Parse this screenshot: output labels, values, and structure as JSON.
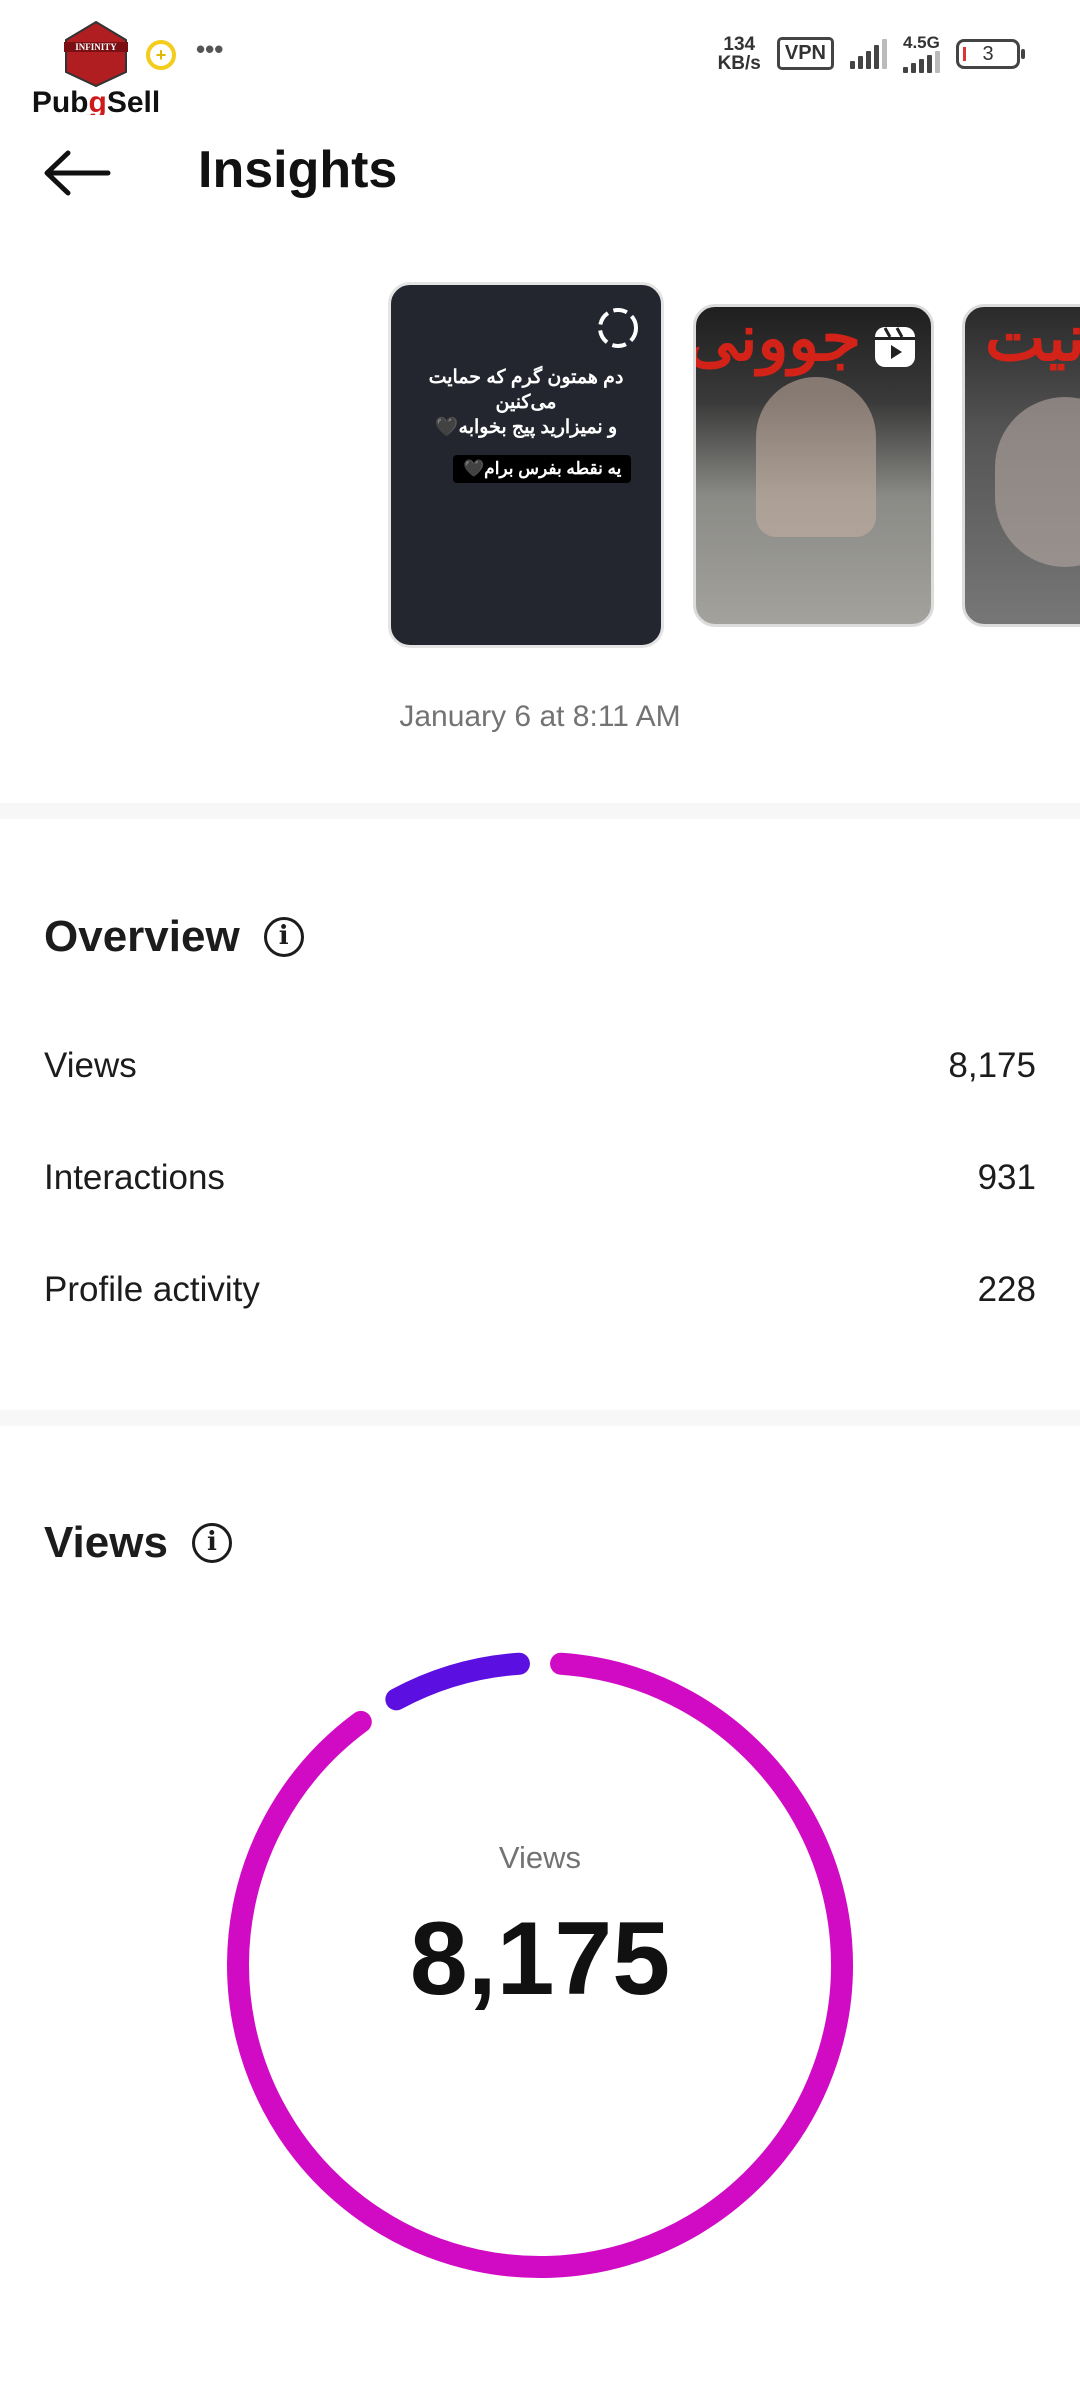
{
  "status_bar": {
    "logo_text": "PubgSell",
    "logo_badge_text": "INFINITY PUBG MOBILE",
    "more": "•••",
    "net_speed_value": "134",
    "net_speed_unit": "KB/s",
    "vpn": "VPN",
    "network": "4.5G",
    "battery": "3"
  },
  "header": {
    "title": "Insights",
    "back_icon": "arrow-left-icon"
  },
  "stories": {
    "items": [
      {
        "type": "text-story",
        "lines": [
          "دم همتون گرم که حمایت",
          "می‌کنین",
          "و نمیزارید پیج بخوابه🖤"
        ],
        "pill": "یه نقطه بفرس برام🖤",
        "icon": "loading-circle-icon"
      },
      {
        "type": "reel",
        "overlay_text": "جوونی",
        "icon": "reels-icon"
      },
      {
        "type": "reel",
        "overlay_text": "نیت"
      }
    ],
    "date": "January 6 at 8:11 AM"
  },
  "overview": {
    "title": "Overview",
    "rows": [
      {
        "label": "Views",
        "value": "8,175"
      },
      {
        "label": "Interactions",
        "value": "931"
      },
      {
        "label": "Profile activity",
        "value": "228"
      }
    ]
  },
  "views": {
    "title": "Views",
    "center_label": "Views",
    "center_value": "8,175",
    "colors": {
      "primary": "#d10bc4",
      "secondary": "#5b0fe0"
    },
    "segment_fractions": [
      0.91,
      0.09
    ]
  }
}
